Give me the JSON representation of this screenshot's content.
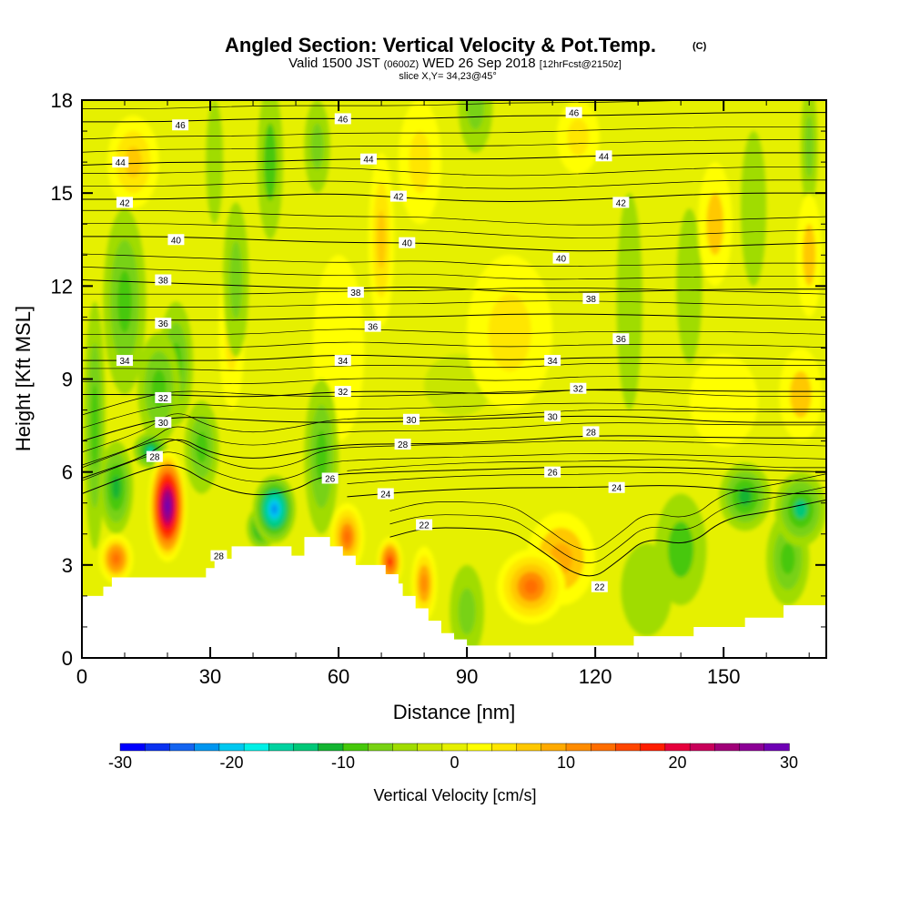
{
  "chart_data": {
    "type": "heatmap",
    "title": "Angled Section: Vertical Velocity & Pot.Temp.",
    "title_unit": "(C)",
    "subtitle_parts": [
      "Valid 1500 JST ",
      "(0600Z)",
      " WED 26 Sep 2018 ",
      "[12hrFcst@2150z]"
    ],
    "slice_label": "slice X,Y= 34,23@45°",
    "xlabel": "Distance [nm]",
    "ylabel": "Height [Kft MSL]",
    "xlim": [
      0,
      174
    ],
    "ylim": [
      0,
      18
    ],
    "xticks": [
      0,
      30,
      60,
      90,
      120,
      150
    ],
    "yticks": [
      0,
      3,
      6,
      9,
      12,
      15,
      18
    ],
    "colorbar": {
      "title": "Vertical Velocity [cm/s]",
      "range": [
        -30,
        30
      ],
      "ticks": [
        -30,
        -20,
        -10,
        0,
        10,
        20,
        30
      ],
      "colors": [
        "#0000ff",
        "#0a32f0",
        "#1464f0",
        "#0096f0",
        "#00c8f0",
        "#00f0e6",
        "#00d2a0",
        "#00c878",
        "#14b432",
        "#46c80a",
        "#78d214",
        "#a0dc00",
        "#c8e600",
        "#e6f000",
        "#ffff00",
        "#ffe600",
        "#ffc800",
        "#ffaa00",
        "#ff8c00",
        "#ff6e00",
        "#ff4600",
        "#ff1e00",
        "#e6003c",
        "#c8005a",
        "#a00078",
        "#8c0096",
        "#6e00b4"
      ]
    },
    "terrain_kft": [
      [
        0,
        2
      ],
      [
        5,
        2
      ],
      [
        5,
        2.3
      ],
      [
        7,
        2.3
      ],
      [
        7,
        2.6
      ],
      [
        29,
        2.6
      ],
      [
        29,
        2.9
      ],
      [
        31,
        2.9
      ],
      [
        31,
        3.2
      ],
      [
        35,
        3.2
      ],
      [
        35,
        3.6
      ],
      [
        49,
        3.6
      ],
      [
        49,
        3.3
      ],
      [
        52,
        3.3
      ],
      [
        52,
        3.9
      ],
      [
        58,
        3.9
      ],
      [
        58,
        3.6
      ],
      [
        61,
        3.6
      ],
      [
        61,
        3.3
      ],
      [
        64,
        3.3
      ],
      [
        64,
        3
      ],
      [
        71,
        3
      ],
      [
        71,
        2.7
      ],
      [
        74,
        2.7
      ],
      [
        74,
        2.4
      ],
      [
        75,
        2.4
      ],
      [
        75,
        2
      ],
      [
        78,
        2
      ],
      [
        78,
        1.6
      ],
      [
        81,
        1.6
      ],
      [
        81,
        1.2
      ],
      [
        84,
        1.2
      ],
      [
        84,
        0.8
      ],
      [
        87,
        0.8
      ],
      [
        87,
        0.6
      ],
      [
        90,
        0.6
      ],
      [
        90,
        0.4
      ],
      [
        125,
        0.4
      ],
      [
        125,
        0.4
      ],
      [
        129,
        0.4
      ],
      [
        129,
        0.7
      ],
      [
        143,
        0.7
      ],
      [
        143,
        1
      ],
      [
        155,
        1
      ],
      [
        155,
        1.3
      ],
      [
        164,
        1.3
      ],
      [
        164,
        1.7
      ],
      [
        174,
        1.7
      ]
    ],
    "theta_contours": [
      {
        "label": "22",
        "pts": [
          [
            72,
            3.9
          ],
          [
            80,
            4.2
          ],
          [
            90,
            4.2
          ],
          [
            100,
            4.1
          ],
          [
            105,
            3.7
          ],
          [
            118,
            2.4
          ],
          [
            126,
            3.2
          ],
          [
            132,
            3.9
          ],
          [
            142,
            3.6
          ],
          [
            150,
            4.5
          ],
          [
            160,
            4.7
          ],
          [
            174,
            5.1
          ]
        ]
      },
      {
        "label": "24",
        "pts": [
          [
            62,
            5.2
          ],
          [
            80,
            5.4
          ],
          [
            100,
            5.5
          ],
          [
            120,
            5.5
          ],
          [
            140,
            5.6
          ],
          [
            160,
            5.3
          ],
          [
            174,
            5.3
          ]
        ]
      },
      {
        "label": "26",
        "pts": [
          [
            0,
            5.3
          ],
          [
            15,
            6.1
          ],
          [
            22,
            6.3
          ],
          [
            30,
            5.6
          ],
          [
            40,
            5.2
          ],
          [
            50,
            5.4
          ],
          [
            56,
            5.9
          ],
          [
            70,
            6.0
          ],
          [
            100,
            6.1
          ],
          [
            120,
            6.2
          ],
          [
            150,
            6.1
          ],
          [
            174,
            6.0
          ]
        ]
      },
      {
        "label": "28",
        "pts": [
          [
            0,
            5.8
          ],
          [
            15,
            6.5
          ],
          [
            22,
            7.2
          ],
          [
            30,
            6.6
          ],
          [
            40,
            6.4
          ],
          [
            50,
            6.6
          ],
          [
            60,
            6.9
          ],
          [
            80,
            6.9
          ],
          [
            100,
            7.0
          ],
          [
            120,
            7.2
          ],
          [
            150,
            7.1
          ],
          [
            174,
            7.1
          ]
        ]
      },
      {
        "label": "30",
        "pts": [
          [
            0,
            7.0
          ],
          [
            12,
            7.5
          ],
          [
            22,
            7.8
          ],
          [
            35,
            7.7
          ],
          [
            50,
            7.6
          ],
          [
            70,
            7.6
          ],
          [
            90,
            7.7
          ],
          [
            110,
            7.8
          ],
          [
            130,
            7.8
          ],
          [
            150,
            7.6
          ],
          [
            174,
            7.6
          ]
        ]
      },
      {
        "label": "32",
        "pts": [
          [
            0,
            8.5
          ],
          [
            20,
            8.5
          ],
          [
            40,
            8.4
          ],
          [
            60,
            8.6
          ],
          [
            80,
            8.6
          ],
          [
            100,
            8.5
          ],
          [
            120,
            8.7
          ],
          [
            150,
            8.6
          ],
          [
            174,
            8.6
          ]
        ]
      },
      {
        "label": "34",
        "pts": [
          [
            0,
            9.6
          ],
          [
            20,
            9.6
          ],
          [
            40,
            9.6
          ],
          [
            60,
            9.8
          ],
          [
            80,
            9.7
          ],
          [
            100,
            9.6
          ],
          [
            120,
            9.7
          ],
          [
            150,
            9.7
          ],
          [
            174,
            9.6
          ]
        ]
      },
      {
        "label": "36",
        "pts": [
          [
            0,
            10.9
          ],
          [
            20,
            10.9
          ],
          [
            40,
            10.9
          ],
          [
            60,
            11.0
          ],
          [
            80,
            11.0
          ],
          [
            100,
            11.1
          ],
          [
            120,
            11.1
          ],
          [
            150,
            11.0
          ],
          [
            174,
            10.9
          ]
        ]
      },
      {
        "label": "38",
        "pts": [
          [
            0,
            12.2
          ],
          [
            20,
            12.1
          ],
          [
            40,
            12.0
          ],
          [
            60,
            11.9
          ],
          [
            80,
            12.0
          ],
          [
            100,
            11.8
          ],
          [
            120,
            11.8
          ],
          [
            150,
            11.9
          ],
          [
            174,
            11.9
          ]
        ]
      },
      {
        "label": "40",
        "pts": [
          [
            0,
            13.6
          ],
          [
            20,
            13.6
          ],
          [
            40,
            13.5
          ],
          [
            60,
            13.4
          ],
          [
            80,
            13.4
          ],
          [
            100,
            13.2
          ],
          [
            120,
            13.1
          ],
          [
            150,
            13.3
          ],
          [
            174,
            13.4
          ]
        ]
      },
      {
        "label": "42",
        "pts": [
          [
            0,
            14.8
          ],
          [
            20,
            14.8
          ],
          [
            40,
            14.9
          ],
          [
            60,
            15.0
          ],
          [
            80,
            14.8
          ],
          [
            100,
            14.7
          ],
          [
            120,
            14.8
          ],
          [
            150,
            15.0
          ],
          [
            174,
            15.0
          ]
        ]
      },
      {
        "label": "44",
        "pts": [
          [
            0,
            15.9
          ],
          [
            20,
            16.0
          ],
          [
            40,
            16.0
          ],
          [
            60,
            16.1
          ],
          [
            80,
            16.1
          ],
          [
            100,
            16.1
          ],
          [
            120,
            16.2
          ],
          [
            150,
            16.3
          ],
          [
            174,
            16.3
          ]
        ]
      },
      {
        "label": "46",
        "pts": [
          [
            0,
            17.3
          ],
          [
            20,
            17.3
          ],
          [
            40,
            17.4
          ],
          [
            60,
            17.4
          ],
          [
            80,
            17.4
          ],
          [
            100,
            17.5
          ],
          [
            120,
            17.5
          ],
          [
            150,
            17.6
          ],
          [
            174,
            17.6
          ]
        ]
      }
    ],
    "theta_labels": [
      {
        "text": "46",
        "x": 23,
        "y": 17.2
      },
      {
        "text": "46",
        "x": 61,
        "y": 17.4
      },
      {
        "text": "46",
        "x": 115,
        "y": 17.6
      },
      {
        "text": "44",
        "x": 9,
        "y": 16.0
      },
      {
        "text": "44",
        "x": 67,
        "y": 16.1
      },
      {
        "text": "44",
        "x": 122,
        "y": 16.2
      },
      {
        "text": "42",
        "x": 10,
        "y": 14.7
      },
      {
        "text": "42",
        "x": 74,
        "y": 14.9
      },
      {
        "text": "42",
        "x": 126,
        "y": 14.7
      },
      {
        "text": "40",
        "x": 22,
        "y": 13.5
      },
      {
        "text": "40",
        "x": 76,
        "y": 13.4
      },
      {
        "text": "40",
        "x": 112,
        "y": 12.9
      },
      {
        "text": "38",
        "x": 19,
        "y": 12.2
      },
      {
        "text": "38",
        "x": 64,
        "y": 11.8
      },
      {
        "text": "38",
        "x": 119,
        "y": 11.6
      },
      {
        "text": "36",
        "x": 19,
        "y": 10.8
      },
      {
        "text": "36",
        "x": 68,
        "y": 10.7
      },
      {
        "text": "36",
        "x": 126,
        "y": 10.3
      },
      {
        "text": "34",
        "x": 10,
        "y": 9.6
      },
      {
        "text": "34",
        "x": 61,
        "y": 9.6
      },
      {
        "text": "34",
        "x": 110,
        "y": 9.6
      },
      {
        "text": "32",
        "x": 19,
        "y": 8.4
      },
      {
        "text": "32",
        "x": 61,
        "y": 8.6
      },
      {
        "text": "32",
        "x": 116,
        "y": 8.7
      },
      {
        "text": "30",
        "x": 19,
        "y": 7.6
      },
      {
        "text": "30",
        "x": 77,
        "y": 7.7
      },
      {
        "text": "30",
        "x": 110,
        "y": 7.8
      },
      {
        "text": "28",
        "x": 17,
        "y": 6.5
      },
      {
        "text": "28",
        "x": 75,
        "y": 6.9
      },
      {
        "text": "28",
        "x": 119,
        "y": 7.3
      },
      {
        "text": "26",
        "x": 58,
        "y": 5.8
      },
      {
        "text": "26",
        "x": 110,
        "y": 6.0
      },
      {
        "text": "24",
        "x": 71,
        "y": 5.3
      },
      {
        "text": "24",
        "x": 125,
        "y": 5.5
      },
      {
        "text": "28",
        "x": 32,
        "y": 3.3
      },
      {
        "text": "22",
        "x": 80,
        "y": 4.3
      },
      {
        "text": "22",
        "x": 121,
        "y": 2.3
      }
    ],
    "w_anomalies": [
      {
        "x": 20,
        "y": 4.9,
        "rx": 4.5,
        "ry": 1.8,
        "w": 30
      },
      {
        "x": 16,
        "y": 6.7,
        "rx": 4,
        "ry": 0.6,
        "w": -15
      },
      {
        "x": 45,
        "y": 4.8,
        "rx": 5,
        "ry": 1.1,
        "w": -22
      },
      {
        "x": 42,
        "y": 4.2,
        "rx": 3.5,
        "ry": 0.7,
        "w": -15
      },
      {
        "x": 8,
        "y": 3.2,
        "rx": 4,
        "ry": 0.8,
        "w": 14
      },
      {
        "x": 3,
        "y": 7.5,
        "rx": 2.5,
        "ry": 4,
        "w": -10
      },
      {
        "x": 8,
        "y": 5.5,
        "rx": 4,
        "ry": 1.5,
        "w": -12
      },
      {
        "x": 28,
        "y": 6.8,
        "rx": 4,
        "ry": 1.5,
        "w": -10
      },
      {
        "x": 56,
        "y": 6.5,
        "rx": 4,
        "ry": 2.5,
        "w": -9
      },
      {
        "x": 62,
        "y": 3.9,
        "rx": 4,
        "ry": 1.1,
        "w": 13
      },
      {
        "x": 72,
        "y": 3.1,
        "rx": 3,
        "ry": 0.8,
        "w": 17
      },
      {
        "x": 80,
        "y": 2.4,
        "rx": 3,
        "ry": 1.2,
        "w": 12
      },
      {
        "x": 90,
        "y": 1.5,
        "rx": 4,
        "ry": 1.5,
        "w": -7
      },
      {
        "x": 105,
        "y": 2.3,
        "rx": 8,
        "ry": 1.2,
        "w": 13
      },
      {
        "x": 112,
        "y": 3.2,
        "rx": 8,
        "ry": 1.5,
        "w": 9
      },
      {
        "x": 132,
        "y": 2.2,
        "rx": 6,
        "ry": 1.5,
        "w": -5
      },
      {
        "x": 140,
        "y": 3.5,
        "rx": 6,
        "ry": 1.8,
        "w": -8
      },
      {
        "x": 155,
        "y": 5.2,
        "rx": 6,
        "ry": 1.1,
        "w": -12
      },
      {
        "x": 168,
        "y": 4.8,
        "rx": 6,
        "ry": 1.2,
        "w": -13
      },
      {
        "x": 165,
        "y": 3.2,
        "rx": 5,
        "ry": 1.5,
        "w": -10
      },
      {
        "x": 10,
        "y": 11.5,
        "rx": 5,
        "ry": 3.0,
        "w": -10
      },
      {
        "x": 18,
        "y": 8.7,
        "rx": 5,
        "ry": 1.8,
        "w": -10
      },
      {
        "x": 22,
        "y": 9.5,
        "rx": 4,
        "ry": 2.0,
        "w": -9
      },
      {
        "x": 36,
        "y": 12.2,
        "rx": 3,
        "ry": 2.5,
        "w": -6
      },
      {
        "x": 44,
        "y": 16,
        "rx": 3,
        "ry": 2.5,
        "w": -8
      },
      {
        "x": 55,
        "y": 16.5,
        "rx": 3,
        "ry": 1.5,
        "w": -6
      },
      {
        "x": 31,
        "y": 16,
        "rx": 2,
        "ry": 2,
        "w": -5
      },
      {
        "x": 92,
        "y": 17.8,
        "rx": 4,
        "ry": 1.5,
        "w": -7
      },
      {
        "x": 142,
        "y": 12.0,
        "rx": 3,
        "ry": 2.5,
        "w": -5
      },
      {
        "x": 128,
        "y": 11.5,
        "rx": 3,
        "ry": 3.5,
        "w": -5
      },
      {
        "x": 157,
        "y": 14.5,
        "rx": 3,
        "ry": 2.5,
        "w": -5
      },
      {
        "x": 170,
        "y": 16.5,
        "rx": 2,
        "ry": 2,
        "w": -6
      },
      {
        "x": 88,
        "y": 8.8,
        "rx": 8,
        "ry": 1.0,
        "w": -3
      },
      {
        "x": 12,
        "y": 16,
        "rx": 6,
        "ry": 1.5,
        "w": 7
      },
      {
        "x": 70,
        "y": 13.5,
        "rx": 3,
        "ry": 2.8,
        "w": 7
      },
      {
        "x": 79,
        "y": 16.0,
        "rx": 5,
        "ry": 2.0,
        "w": 5
      },
      {
        "x": 116,
        "y": 16.8,
        "rx": 5,
        "ry": 1.2,
        "w": 5
      },
      {
        "x": 148,
        "y": 14.0,
        "rx": 4,
        "ry": 2.0,
        "w": 6
      },
      {
        "x": 170,
        "y": 13.0,
        "rx": 3,
        "ry": 2.0,
        "w": 6
      },
      {
        "x": 150,
        "y": 8.3,
        "rx": 8,
        "ry": 1.5,
        "w": 3
      },
      {
        "x": 168,
        "y": 8.5,
        "rx": 5,
        "ry": 1.5,
        "w": 6
      },
      {
        "x": 35,
        "y": 10.5,
        "rx": 3,
        "ry": 2.5,
        "w": 4
      },
      {
        "x": 100,
        "y": 10.5,
        "rx": 10,
        "ry": 2.5,
        "w": 4
      },
      {
        "x": 60,
        "y": 10,
        "rx": 6,
        "ry": 3,
        "w": 3
      }
    ],
    "background_w": -1
  }
}
